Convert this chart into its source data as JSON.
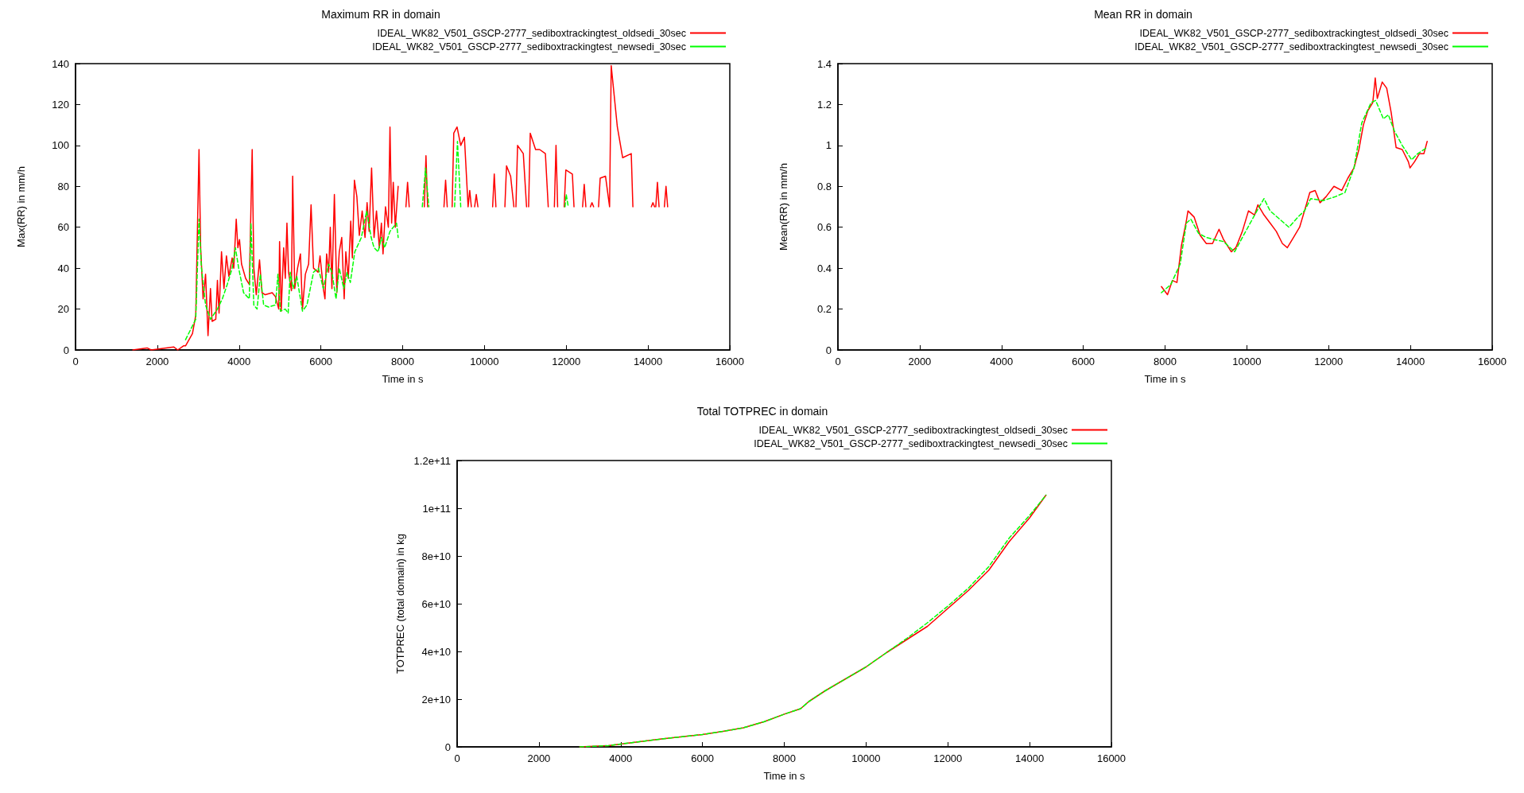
{
  "chart_data": [
    {
      "type": "line",
      "title": "Maximum RR in domain",
      "xlabel": "Time in s",
      "ylabel": "Max(RR) in mm/h",
      "xlim": [
        0,
        16000
      ],
      "xticks": [
        0,
        2000,
        4000,
        6000,
        8000,
        10000,
        12000,
        14000,
        16000
      ],
      "ylim": [
        0,
        140
      ],
      "yticks": [
        0,
        20,
        40,
        60,
        80,
        100,
        120,
        140
      ],
      "legend": "top right",
      "series": [
        {
          "name": "IDEAL_WK82_V501_GSCP-2777_sediboxtrackingtest_oldsedi_30sec",
          "color": "#ff0000",
          "line_style": "solid",
          "x": [
            1400,
            1750,
            1850,
            2400,
            2500,
            2640,
            2690,
            2860,
            2940,
            3020,
            3060,
            3120,
            3180,
            3240,
            3300,
            3340,
            3430,
            3470,
            3510,
            3570,
            3630,
            3690,
            3750,
            3830,
            3870,
            3930,
            3970,
            4010,
            4060,
            4160,
            4250,
            4320,
            4360,
            4420,
            4500,
            4560,
            4640,
            4810,
            4890,
            4970,
            4990,
            5030,
            5090,
            5130,
            5170,
            5210,
            5280,
            5310,
            5360,
            5430,
            5500,
            5550,
            5620,
            5700,
            5760,
            5820,
            5930,
            5980,
            6060,
            6100,
            6140,
            6190,
            6230,
            6270,
            6330,
            6390,
            6450,
            6510,
            6570,
            6610,
            6670,
            6730,
            6770,
            6820,
            6880,
            6940,
            7010,
            7080,
            7130,
            7180,
            7240,
            7300,
            7360,
            7430,
            7480,
            7520,
            7580,
            7650,
            7690,
            7730,
            7770,
            7820,
            7890,
            8000,
            8080,
            8120,
            8160,
            8300,
            8530,
            8570,
            8610,
            8800,
            9010,
            9050,
            9090,
            9150,
            9210,
            9250,
            9330,
            9420,
            9510,
            9600,
            9640,
            9680,
            9720,
            9760,
            9800,
            9840,
            10000,
            10200,
            10240,
            10280,
            10400,
            10500,
            10540,
            10640,
            10720,
            10745,
            10770,
            10810,
            10950,
            11030,
            11055,
            11080,
            11120,
            11250,
            11350,
            11490,
            11560,
            11600,
            11710,
            11750,
            11790,
            11900,
            11950,
            11990,
            12150,
            12190,
            12300,
            12400,
            12440,
            12480,
            12550,
            12590,
            12630,
            12670,
            12750,
            12790,
            12830,
            12960,
            13060,
            13100,
            13250,
            13380,
            13590,
            13630,
            13900,
            14080,
            14120,
            14160,
            14180,
            14190,
            14230,
            14270,
            14350,
            14400,
            14440,
            14480
          ],
          "values": [
            0,
            1,
            0,
            1.5,
            0,
            2,
            2,
            8,
            17,
            98,
            50,
            25,
            37,
            7,
            30,
            14,
            15,
            34,
            18,
            48,
            30,
            46,
            36,
            45,
            40,
            64,
            50,
            54,
            42,
            35,
            32,
            98,
            40,
            27,
            44,
            28,
            27,
            28,
            26,
            20,
            53,
            19,
            50,
            35,
            62,
            38,
            29,
            85,
            30,
            40,
            47,
            20,
            37,
            42,
            71,
            40,
            38,
            46,
            30,
            25,
            47,
            38,
            60,
            30,
            76,
            28,
            48,
            55,
            25,
            48,
            35,
            63,
            45,
            83,
            75,
            56,
            68,
            55,
            72,
            58,
            89,
            55,
            68,
            50,
            62,
            47,
            70,
            60,
            109,
            62,
            82,
            60,
            80,
            null,
            70,
            82,
            70,
            null,
            70,
            95,
            70,
            null,
            70,
            83,
            70,
            null,
            70,
            106,
            109,
            100,
            104,
            70,
            78,
            70,
            null,
            70,
            76,
            70,
            null,
            70,
            86,
            70,
            null,
            70,
            90,
            85,
            70,
            null,
            70,
            100,
            96,
            70,
            null,
            70,
            106,
            98,
            98,
            96,
            70,
            null,
            70,
            100,
            70,
            null,
            70,
            88,
            86,
            70,
            null,
            70,
            81,
            70,
            null,
            70,
            72,
            70,
            null,
            70,
            84,
            85,
            70,
            139,
            109,
            94,
            96,
            70,
            null,
            70,
            72,
            70,
            null,
            70,
            82,
            70,
            null,
            70,
            80,
            70
          ]
        },
        {
          "name": "IDEAL_WK82_V501_GSCP-2777_sediboxtrackingtest_newsedi_30sec",
          "color": "#00ff00",
          "line_style": "dashed",
          "x": [
            2690,
            2940,
            3020,
            3080,
            3180,
            3300,
            3470,
            3590,
            3710,
            3830,
            3910,
            3990,
            4110,
            4250,
            4290,
            4360,
            4440,
            4520,
            4600,
            4720,
            4890,
            4950,
            5010,
            5130,
            5200,
            5250,
            5320,
            5410,
            5500,
            5550,
            5660,
            5820,
            5940,
            6060,
            6190,
            6270,
            6370,
            6450,
            6560,
            6640,
            6720,
            6830,
            6990,
            7120,
            7230,
            7300,
            7400,
            7480,
            7560,
            7690,
            7850,
            7890,
            8000,
            8480,
            8560,
            8640,
            8900,
            9270,
            9340,
            9420,
            11800,
            11970,
            12000,
            12050
          ],
          "values": [
            5,
            15,
            64,
            40,
            22,
            15,
            20,
            25,
            32,
            40,
            50,
            40,
            28,
            25,
            62,
            22,
            20,
            37,
            22,
            21,
            22,
            37,
            19,
            20,
            18,
            38,
            30,
            36,
            25,
            19,
            22,
            38,
            40,
            30,
            42,
            38,
            25,
            40,
            30,
            38,
            33,
            48,
            55,
            68,
            55,
            50,
            48,
            55,
            50,
            58,
            62,
            55,
            null,
            70,
            89,
            70,
            null,
            70,
            102,
            70,
            null,
            70,
            76,
            70
          ]
        }
      ]
    },
    {
      "type": "line",
      "title": "Mean RR in domain",
      "xlabel": "Time in s",
      "ylabel": "Mean(RR) in mm/h",
      "xlim": [
        0,
        16000
      ],
      "xticks": [
        0,
        2000,
        4000,
        6000,
        8000,
        10000,
        12000,
        14000,
        16000
      ],
      "ylim": [
        0,
        1.4
      ],
      "yticks": [
        0,
        0.2,
        0.4,
        0.6,
        0.8,
        1,
        1.2,
        1.4
      ],
      "legend": "top right",
      "series": [
        {
          "name": "IDEAL_WK82_V501_GSCP-2777_sediboxtrackingtest_oldsedi_30sec",
          "color": "#ff0000",
          "line_style": "solid",
          "x": [
            7910,
            8060,
            8180,
            8290,
            8400,
            8520,
            8560,
            8710,
            8860,
            9010,
            9160,
            9320,
            9430,
            9620,
            9730,
            9890,
            10040,
            10190,
            10270,
            10420,
            10570,
            10720,
            10870,
            10990,
            11140,
            11290,
            11410,
            11540,
            11670,
            11790,
            11940,
            12130,
            12320,
            12470,
            12620,
            12740,
            12850,
            12960,
            13080,
            13140,
            13190,
            13310,
            13420,
            13530,
            13650,
            13800,
            13950,
            13990,
            14100,
            14220,
            14330,
            14410
          ],
          "values": [
            0.31,
            0.27,
            0.34,
            0.33,
            0.51,
            0.63,
            0.68,
            0.65,
            0.56,
            0.52,
            0.52,
            0.59,
            0.54,
            0.48,
            0.5,
            0.58,
            0.68,
            0.66,
            0.71,
            0.66,
            0.62,
            0.58,
            0.52,
            0.5,
            0.55,
            0.6,
            0.68,
            0.77,
            0.78,
            0.72,
            0.75,
            0.8,
            0.78,
            0.84,
            0.89,
            0.98,
            1.1,
            1.17,
            1.21,
            1.33,
            1.23,
            1.31,
            1.28,
            1.16,
            0.99,
            0.98,
            0.92,
            0.89,
            0.92,
            0.96,
            0.96,
            1.02
          ]
        },
        {
          "name": "IDEAL_WK82_V501_GSCP-2777_sediboxtrackingtest_newsedi_30sec",
          "color": "#00ff00",
          "line_style": "dashed",
          "x": [
            7910,
            8140,
            8370,
            8520,
            8630,
            8820,
            9010,
            9200,
            9430,
            9700,
            9890,
            10110,
            10300,
            10420,
            10570,
            10800,
            11030,
            11250,
            11410,
            11560,
            11860,
            12170,
            12400,
            12620,
            12810,
            13040,
            13150,
            13340,
            13460,
            13610,
            13800,
            14030,
            14180,
            14410
          ],
          "values": [
            0.28,
            0.32,
            0.42,
            0.62,
            0.64,
            0.57,
            0.55,
            0.54,
            0.53,
            0.48,
            0.55,
            0.63,
            0.7,
            0.74,
            0.68,
            0.64,
            0.6,
            0.65,
            0.68,
            0.74,
            0.73,
            0.75,
            0.77,
            0.89,
            1.11,
            1.21,
            1.22,
            1.13,
            1.15,
            1.07,
            1,
            0.93,
            0.96,
            0.99
          ]
        }
      ]
    },
    {
      "type": "line",
      "title": "Total TOTPREC in domain",
      "xlabel": "Time in s",
      "ylabel": "TOTPREC (total domain) in kg",
      "xlim": [
        0,
        16000
      ],
      "xticks": [
        0,
        2000,
        4000,
        6000,
        8000,
        10000,
        12000,
        14000,
        16000
      ],
      "ylim": [
        0,
        120000000000
      ],
      "yticks": [
        0,
        {
          "value": 20000000000,
          "label": "2e+10"
        },
        {
          "value": 40000000000,
          "label": "4e+10"
        },
        {
          "value": 60000000000,
          "label": "6e+10"
        },
        {
          "value": 80000000000,
          "label": "8e+10"
        },
        {
          "value": 100000000000,
          "label": "1e+11"
        },
        {
          "value": 120000000000,
          "label": "1.2e+11"
        }
      ],
      "legend": "top right",
      "series": [
        {
          "name": "IDEAL_WK82_V501_GSCP-2777_sediboxtrackingtest_oldsedi_30sec",
          "color": "#ff0000",
          "line_style": "solid",
          "x": [
            3000,
            3700,
            4000,
            5000,
            6000,
            6500,
            7000,
            7500,
            8000,
            8400,
            8600,
            9000,
            9500,
            10000,
            10500,
            11000,
            11500,
            12000,
            12500,
            13000,
            13500,
            14000,
            14400
          ],
          "values": [
            0,
            500000000,
            1200000000,
            3300000000,
            5200000000,
            6500000000,
            8000000000,
            10500000000,
            13700000000,
            16000000000,
            19000000000,
            23500000000,
            28500000000,
            33500000000,
            39500000000,
            45000000000,
            50500000000,
            58000000000,
            65500000000,
            74000000000,
            86000000000,
            96000000000,
            105500000000
          ]
        },
        {
          "name": "IDEAL_WK82_V501_GSCP-2777_sediboxtrackingtest_newsedi_30sec",
          "color": "#00ff00",
          "line_style": "dashed",
          "x": [
            3000,
            3700,
            4000,
            5000,
            6000,
            6500,
            7000,
            7500,
            8000,
            8400,
            8600,
            9000,
            9500,
            10000,
            10500,
            11000,
            11500,
            12000,
            12500,
            13000,
            13500,
            14000,
            14400
          ],
          "values": [
            0,
            500000000,
            1200000000,
            3300000000,
            5200000000,
            6500000000,
            8000000000,
            10500000000,
            13700000000,
            16000000000,
            19000000000,
            23500000000,
            28500000000,
            33500000000,
            39500000000,
            45500000000,
            52000000000,
            59000000000,
            66500000000,
            75500000000,
            87500000000,
            97000000000,
            105500000000
          ]
        }
      ]
    }
  ]
}
